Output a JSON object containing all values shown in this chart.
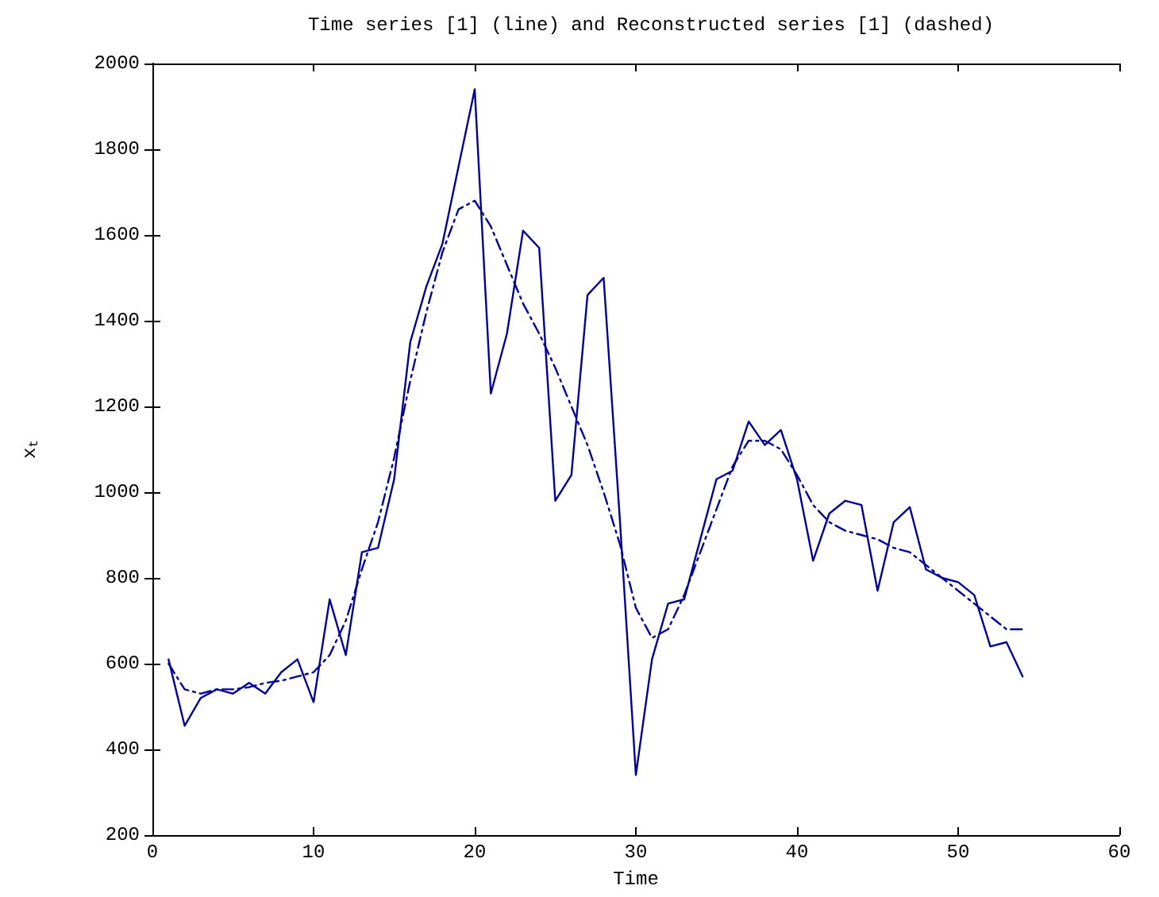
{
  "chart_data": {
    "type": "line",
    "title": "Time series [1] (line) and Reconstructed series [1] (dashed)",
    "xlabel": "Time",
    "ylabel": "x$_{t}$",
    "x": [
      1,
      2,
      3,
      4,
      5,
      6,
      7,
      8,
      9,
      10,
      11,
      12,
      13,
      14,
      15,
      16,
      17,
      18,
      19,
      20,
      21,
      22,
      23,
      24,
      25,
      26,
      27,
      28,
      29,
      30,
      31,
      32,
      33,
      34,
      35,
      36,
      37,
      38,
      39,
      40,
      41,
      42,
      43,
      44,
      45,
      46,
      47,
      48,
      49,
      50,
      51,
      52,
      53,
      54
    ],
    "series": [
      {
        "color": "#000099",
        "line_style": "solid",
        "values": [
          610,
          455,
          520,
          540,
          530,
          555,
          530,
          580,
          610,
          510,
          750,
          620,
          860,
          870,
          1030,
          1350,
          1480,
          1580,
          1760,
          1940,
          1230,
          1370,
          1610,
          1570,
          980,
          1040,
          1460,
          1500,
          940,
          340,
          610,
          740,
          750,
          890,
          1030,
          1050,
          1165,
          1110,
          1145,
          1030,
          840,
          950,
          980,
          970,
          770,
          930,
          965,
          820,
          800,
          790,
          760,
          640,
          650,
          570
        ]
      },
      {
        "color": "#000099",
        "line_style": "dashed",
        "values": [
          600,
          540,
          530,
          540,
          540,
          545,
          555,
          560,
          570,
          580,
          620,
          700,
          820,
          930,
          1080,
          1260,
          1420,
          1560,
          1660,
          1680,
          1620,
          1530,
          1440,
          1370,
          1290,
          1200,
          1110,
          1000,
          880,
          730,
          660,
          680,
          760,
          860,
          960,
          1060,
          1120,
          1120,
          1100,
          1040,
          970,
          930,
          910,
          900,
          890,
          870,
          860,
          830,
          800,
          770,
          740,
          710,
          680,
          680
        ]
      }
    ],
    "xlim": [
      0,
      60
    ],
    "xticks": [
      0,
      10,
      20,
      30,
      40,
      50,
      60
    ],
    "ylim": [
      200,
      2000
    ],
    "yticks": [
      200,
      400,
      600,
      800,
      1000,
      1200,
      1400,
      1600,
      1800,
      2000
    ],
    "grid": false,
    "marker": "none"
  }
}
